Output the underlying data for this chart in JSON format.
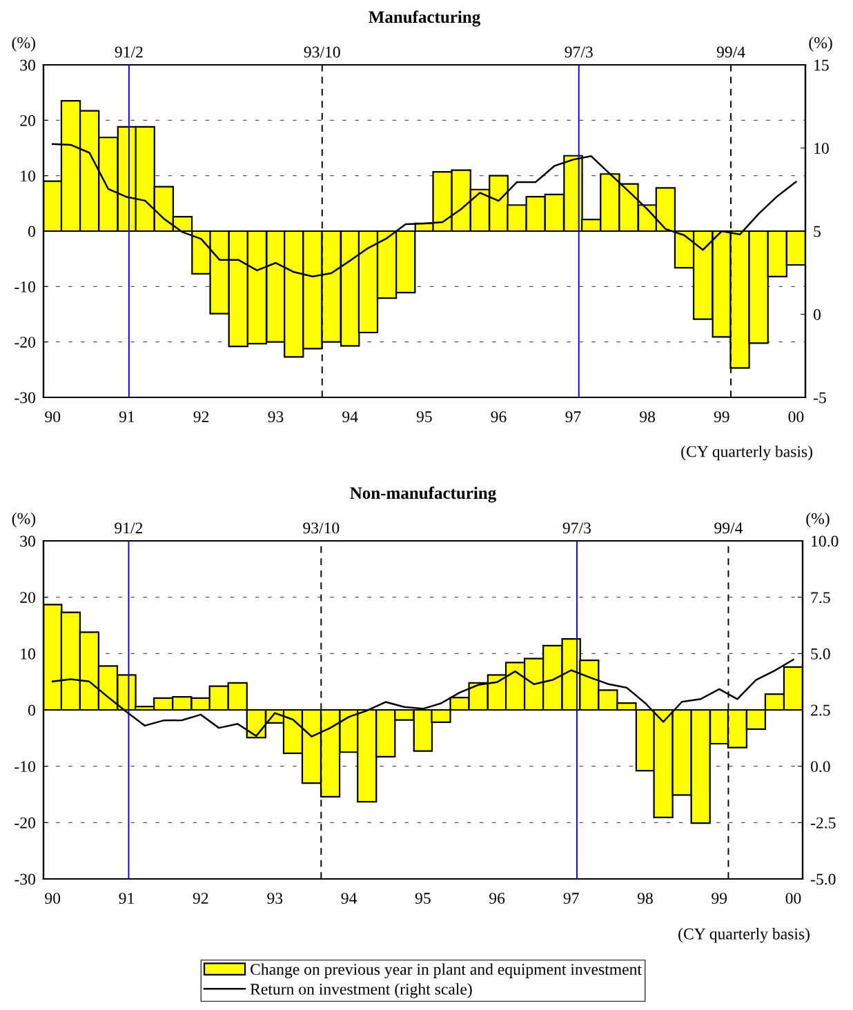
{
  "chart_data": [
    {
      "type": "bar",
      "title": "Manufacturing",
      "ylabel": "(%)",
      "y2label": "(%)",
      "x": [
        "1990-02-15",
        "1990-05-15",
        "1990-08-15",
        "1990-11-15",
        "1991-02-15",
        "1991-05-15",
        "1991-08-15",
        "1991-11-15",
        "1992-02-15",
        "1992-05-15",
        "1992-08-15",
        "1992-11-15",
        "1993-02-15",
        "1993-05-15",
        "1993-08-15",
        "1993-11-15",
        "1994-02-15",
        "1994-05-15",
        "1994-08-15",
        "1994-11-15",
        "1995-02-15",
        "1995-05-15",
        "1995-08-15",
        "1995-11-15",
        "1996-02-15",
        "1996-05-15",
        "1996-08-15",
        "1996-11-15",
        "1997-02-15",
        "1997-05-15",
        "1997-08-15",
        "1997-11-15",
        "1998-02-15",
        "1998-05-15",
        "1998-08-15",
        "1998-11-15",
        "1999-02-15",
        "1999-05-15",
        "1999-08-15",
        "1999-11-15",
        "2000-02-15"
      ],
      "series": [
        {
          "color": "#ffff00",
          "values": [
            9.0,
            23.5,
            21.7,
            16.9,
            18.8,
            18.8,
            8.0,
            2.6,
            -7.7,
            -14.9,
            -20.8,
            -20.3,
            -20.0,
            -22.7,
            -21.2,
            -20.0,
            -20.7,
            -18.3,
            -12.1,
            -11.1,
            1.4,
            10.7,
            11.0,
            7.5,
            10.0,
            4.7,
            6.2,
            6.6,
            13.6,
            2.1,
            10.3,
            8.5,
            4.7,
            7.8,
            -6.6,
            -15.9,
            -19.1,
            -24.7,
            -20.2,
            -8.2,
            -6.1
          ]
        },
        {
          "type": "line",
          "axis": "y2",
          "color": "#000000",
          "values": [
            10.24,
            10.19,
            9.71,
            7.54,
            7.05,
            6.83,
            5.75,
            4.94,
            4.53,
            3.27,
            3.27,
            2.64,
            3.09,
            2.54,
            2.27,
            2.47,
            3.22,
            3.98,
            4.57,
            5.41,
            5.46,
            5.54,
            6.33,
            7.31,
            6.82,
            7.95,
            7.95,
            8.92,
            9.3,
            9.51,
            8.44,
            7.39,
            6.31,
            5.13,
            4.75,
            3.87,
            5.0,
            4.8,
            6.03,
            7.1,
            7.97
          ]
        }
      ],
      "xlim": [
        "1990-01-01",
        "2000-04-01"
      ],
      "xticks": [
        {
          "value": "1990-02-15",
          "label": "90"
        },
        {
          "value": "1991-02-15",
          "label": "91"
        },
        {
          "value": "1992-02-15",
          "label": "92"
        },
        {
          "value": "1993-02-15",
          "label": "93"
        },
        {
          "value": "1994-02-15",
          "label": "94"
        },
        {
          "value": "1995-02-15",
          "label": "95"
        },
        {
          "value": "1996-02-15",
          "label": "96"
        },
        {
          "value": "1997-02-15",
          "label": "97"
        },
        {
          "value": "1998-02-15",
          "label": "98"
        },
        {
          "value": "1999-02-15",
          "label": "99"
        },
        {
          "value": "2000-02-15",
          "label": "00"
        }
      ],
      "ylim": [
        -30,
        30
      ],
      "yticks": [
        -30,
        -20,
        -10,
        0,
        10,
        20,
        30
      ],
      "y2lim": [
        -5,
        15
      ],
      "y2ticks": [
        -5,
        0,
        5,
        10,
        15
      ],
      "ref_lines": [
        {
          "axis": "x",
          "value": "1991-02-25",
          "label": "91/2",
          "color": "#0000ff",
          "line_style": "solid"
        },
        {
          "axis": "x",
          "value": "1993-10-01",
          "label": "93/10",
          "color": "#000000",
          "line_style": "dashed"
        },
        {
          "axis": "x",
          "value": "1997-03-15",
          "label": "97/3",
          "color": "#0000ff",
          "line_style": "solid"
        },
        {
          "axis": "x",
          "value": "1999-04-01",
          "label": "99/4",
          "color": "#000000",
          "line_style": "dashed"
        }
      ],
      "annotations": [
        "(CY quarterly basis)"
      ],
      "grid": "y",
      "legend": false
    },
    {
      "type": "bar",
      "title": "Non-manufacturing",
      "ylabel": "(%)",
      "y2label": "(%)",
      "x": [
        "1990-02-15",
        "1990-05-15",
        "1990-08-15",
        "1990-11-15",
        "1991-02-15",
        "1991-05-15",
        "1991-08-15",
        "1991-11-15",
        "1992-02-15",
        "1992-05-15",
        "1992-08-15",
        "1992-11-15",
        "1993-02-15",
        "1993-05-15",
        "1993-08-15",
        "1993-11-15",
        "1994-02-15",
        "1994-05-15",
        "1994-08-15",
        "1994-11-15",
        "1995-02-15",
        "1995-05-15",
        "1995-08-15",
        "1995-11-15",
        "1996-02-15",
        "1996-05-15",
        "1996-08-15",
        "1996-11-15",
        "1997-02-15",
        "1997-05-15",
        "1997-08-15",
        "1997-11-15",
        "1998-02-15",
        "1998-05-15",
        "1998-08-15",
        "1998-11-15",
        "1999-02-15",
        "1999-05-15",
        "1999-08-15",
        "1999-11-15",
        "2000-02-15"
      ],
      "series": [
        {
          "name": "Change on previous year in plant and equipment investment",
          "color": "#ffff00",
          "values": [
            18.7,
            17.3,
            13.8,
            7.8,
            6.2,
            0.6,
            2.1,
            2.3,
            2.1,
            4.2,
            4.8,
            -4.9,
            -2.3,
            -7.7,
            -13.0,
            -15.4,
            -7.5,
            -16.3,
            -8.3,
            -1.8,
            -7.3,
            -2.2,
            2.2,
            4.8,
            6.2,
            8.4,
            9.1,
            11.4,
            12.6,
            8.8,
            3.5,
            1.2,
            -10.8,
            -19.1,
            -15.1,
            -20.1,
            -6.0,
            -6.7,
            -3.4,
            2.8,
            7.6
          ]
        },
        {
          "type": "line",
          "axis": "y2",
          "name": "Return on investment (right scale)",
          "color": "#000000",
          "values": [
            3.76,
            3.86,
            3.76,
            3.07,
            2.41,
            1.8,
            2.03,
            2.04,
            2.29,
            1.7,
            1.88,
            1.34,
            2.36,
            2.07,
            1.32,
            1.7,
            2.19,
            2.47,
            2.85,
            2.63,
            2.55,
            2.79,
            3.27,
            3.61,
            3.73,
            4.21,
            3.64,
            3.83,
            4.26,
            3.95,
            3.65,
            3.49,
            2.8,
            1.97,
            2.86,
            2.98,
            3.42,
            2.98,
            3.83,
            4.24,
            4.73
          ]
        }
      ],
      "xlim": [
        "1990-01-01",
        "2000-04-01"
      ],
      "xticks": [
        {
          "value": "1990-02-15",
          "label": "90"
        },
        {
          "value": "1991-02-15",
          "label": "91"
        },
        {
          "value": "1992-02-15",
          "label": "92"
        },
        {
          "value": "1993-02-15",
          "label": "93"
        },
        {
          "value": "1994-02-15",
          "label": "94"
        },
        {
          "value": "1995-02-15",
          "label": "95"
        },
        {
          "value": "1996-02-15",
          "label": "96"
        },
        {
          "value": "1997-02-15",
          "label": "97"
        },
        {
          "value": "1998-02-15",
          "label": "98"
        },
        {
          "value": "1999-02-15",
          "label": "99"
        },
        {
          "value": "2000-02-15",
          "label": "00"
        }
      ],
      "ylim": [
        -30,
        30
      ],
      "yticks": [
        -30,
        -20,
        -10,
        0,
        10,
        20,
        30
      ],
      "y2lim": [
        -5,
        10
      ],
      "y2ticks": [
        {
          "value": -5,
          "label": "-5.0"
        },
        {
          "value": -2.5,
          "label": "-2.5"
        },
        {
          "value": 0,
          "label": "0.0"
        },
        {
          "value": 2.5,
          "label": "2.5"
        },
        {
          "value": 5,
          "label": "5.0"
        },
        {
          "value": 7.5,
          "label": "7.5"
        },
        {
          "value": 10,
          "label": "10.0"
        }
      ],
      "ref_lines": [
        {
          "axis": "x",
          "value": "1991-02-25",
          "label": "91/2",
          "color": "#0000ff",
          "line_style": "solid"
        },
        {
          "axis": "x",
          "value": "1993-10-01",
          "label": "93/10",
          "color": "#000000",
          "line_style": "dashed"
        },
        {
          "axis": "x",
          "value": "1997-03-15",
          "label": "97/3",
          "color": "#0000ff",
          "line_style": "solid"
        },
        {
          "axis": "x",
          "value": "1999-04-01",
          "label": "99/4",
          "color": "#000000",
          "line_style": "dashed"
        }
      ],
      "annotations": [
        "(CY quarterly basis)"
      ],
      "grid": "y",
      "legend": "bottom"
    }
  ]
}
